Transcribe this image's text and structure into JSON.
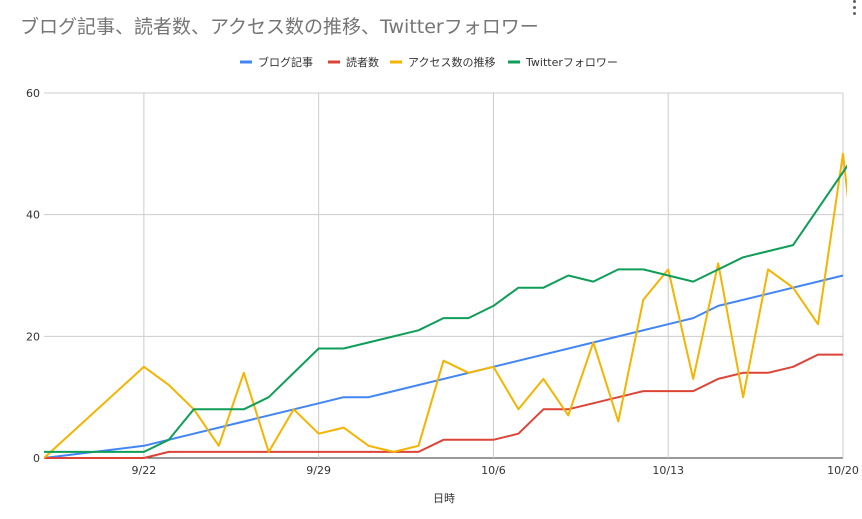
{
  "chart_data": {
    "type": "line",
    "title": "ブログ記事、読者数、アクセス数の推移、Twitterフォロワー",
    "xlabel": "日時",
    "ylabel": "",
    "ylim": [
      0,
      60
    ],
    "yticks": [
      0,
      20,
      40,
      60
    ],
    "xlim": [
      "2019-09-18",
      "2019-10-20"
    ],
    "xticks": [
      {
        "date": "2019-09-22",
        "label": "9/22"
      },
      {
        "date": "2019-09-29",
        "label": "9/29"
      },
      {
        "date": "2019-10-06",
        "label": "10/6"
      },
      {
        "date": "2019-10-13",
        "label": "10/13"
      },
      {
        "date": "2019-10-20",
        "label": "10/20"
      }
    ],
    "grid": true,
    "legend_position": "top",
    "series": [
      {
        "name": "ブログ記事",
        "color": "#4285f4",
        "points": [
          [
            "2019-09-18",
            0
          ],
          [
            "2019-09-22",
            2
          ],
          [
            "2019-09-29",
            9
          ],
          [
            "2019-09-30",
            10
          ],
          [
            "2019-10-01",
            10
          ],
          [
            "2019-10-06",
            15
          ],
          [
            "2019-10-13",
            22
          ],
          [
            "2019-10-14",
            23
          ],
          [
            "2019-10-15",
            25
          ],
          [
            "2019-10-20",
            30
          ]
        ]
      },
      {
        "name": "読者数",
        "color": "#db4437",
        "points": [
          [
            "2019-09-18",
            0
          ],
          [
            "2019-09-22",
            0
          ],
          [
            "2019-09-23",
            1
          ],
          [
            "2019-10-03",
            1
          ],
          [
            "2019-10-04",
            3
          ],
          [
            "2019-10-06",
            3
          ],
          [
            "2019-10-07",
            4
          ],
          [
            "2019-10-08",
            8
          ],
          [
            "2019-10-09",
            8
          ],
          [
            "2019-10-11",
            10
          ],
          [
            "2019-10-12",
            11
          ],
          [
            "2019-10-14",
            11
          ],
          [
            "2019-10-15",
            13
          ],
          [
            "2019-10-16",
            14
          ],
          [
            "2019-10-17",
            14
          ],
          [
            "2019-10-18",
            15
          ],
          [
            "2019-10-19",
            17
          ],
          [
            "2019-10-20",
            17
          ]
        ]
      },
      {
        "name": "アクセス数の推移",
        "color": "#f4b400",
        "points": [
          [
            "2019-09-18",
            0
          ],
          [
            "2019-09-22",
            15
          ],
          [
            "2019-09-23",
            12
          ],
          [
            "2019-09-24",
            8
          ],
          [
            "2019-09-25",
            2
          ],
          [
            "2019-09-26",
            14
          ],
          [
            "2019-09-27",
            1
          ],
          [
            "2019-09-28",
            8
          ],
          [
            "2019-09-29",
            4
          ],
          [
            "2019-09-30",
            5
          ],
          [
            "2019-10-01",
            2
          ],
          [
            "2019-10-02",
            1
          ],
          [
            "2019-10-03",
            2
          ],
          [
            "2019-10-04",
            16
          ],
          [
            "2019-10-05",
            14
          ],
          [
            "2019-10-06",
            15
          ],
          [
            "2019-10-07",
            8
          ],
          [
            "2019-10-08",
            13
          ],
          [
            "2019-10-09",
            7
          ],
          [
            "2019-10-10",
            19
          ],
          [
            "2019-10-11",
            6
          ],
          [
            "2019-10-12",
            26
          ],
          [
            "2019-10-13",
            31
          ],
          [
            "2019-10-14",
            13
          ],
          [
            "2019-10-15",
            32
          ],
          [
            "2019-10-16",
            10
          ],
          [
            "2019-10-17",
            31
          ],
          [
            "2019-10-18",
            28
          ],
          [
            "2019-10-19",
            22
          ],
          [
            "2019-10-20",
            50
          ],
          [
            "2019-10-21",
            13
          ]
        ]
      },
      {
        "name": "Twitterフォロワー",
        "color": "#0f9d58",
        "points": [
          [
            "2019-09-18",
            1
          ],
          [
            "2019-09-22",
            1
          ],
          [
            "2019-09-23",
            3
          ],
          [
            "2019-09-24",
            8
          ],
          [
            "2019-09-26",
            8
          ],
          [
            "2019-09-27",
            10
          ],
          [
            "2019-09-29",
            18
          ],
          [
            "2019-09-30",
            18
          ],
          [
            "2019-10-03",
            21
          ],
          [
            "2019-10-04",
            23
          ],
          [
            "2019-10-05",
            23
          ],
          [
            "2019-10-06",
            25
          ],
          [
            "2019-10-07",
            28
          ],
          [
            "2019-10-08",
            28
          ],
          [
            "2019-10-09",
            30
          ],
          [
            "2019-10-10",
            29
          ],
          [
            "2019-10-11",
            31
          ],
          [
            "2019-10-12",
            31
          ],
          [
            "2019-10-14",
            29
          ],
          [
            "2019-10-16",
            33
          ],
          [
            "2019-10-18",
            35
          ],
          [
            "2019-10-21",
            53
          ]
        ]
      }
    ]
  }
}
